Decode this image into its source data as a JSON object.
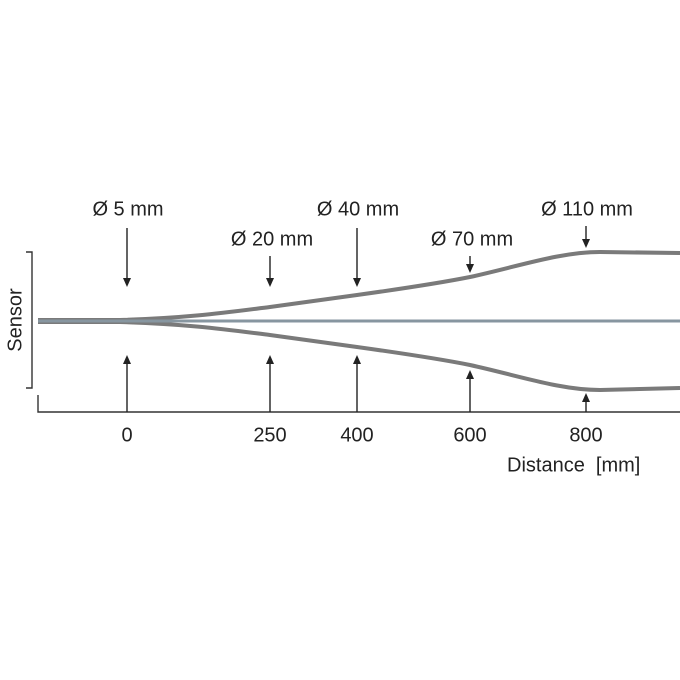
{
  "axis": {
    "y_label": "Sensor",
    "x_label": "Distance  [mm]"
  },
  "spots": [
    {
      "distance": "0",
      "diameter": "Ø 5 mm"
    },
    {
      "distance": "250",
      "diameter": "Ø 20 mm"
    },
    {
      "distance": "400",
      "diameter": "Ø 40 mm"
    },
    {
      "distance": "600",
      "diameter": "Ø 70 mm"
    },
    {
      "distance": "800",
      "diameter": "Ø 110 mm"
    }
  ]
}
